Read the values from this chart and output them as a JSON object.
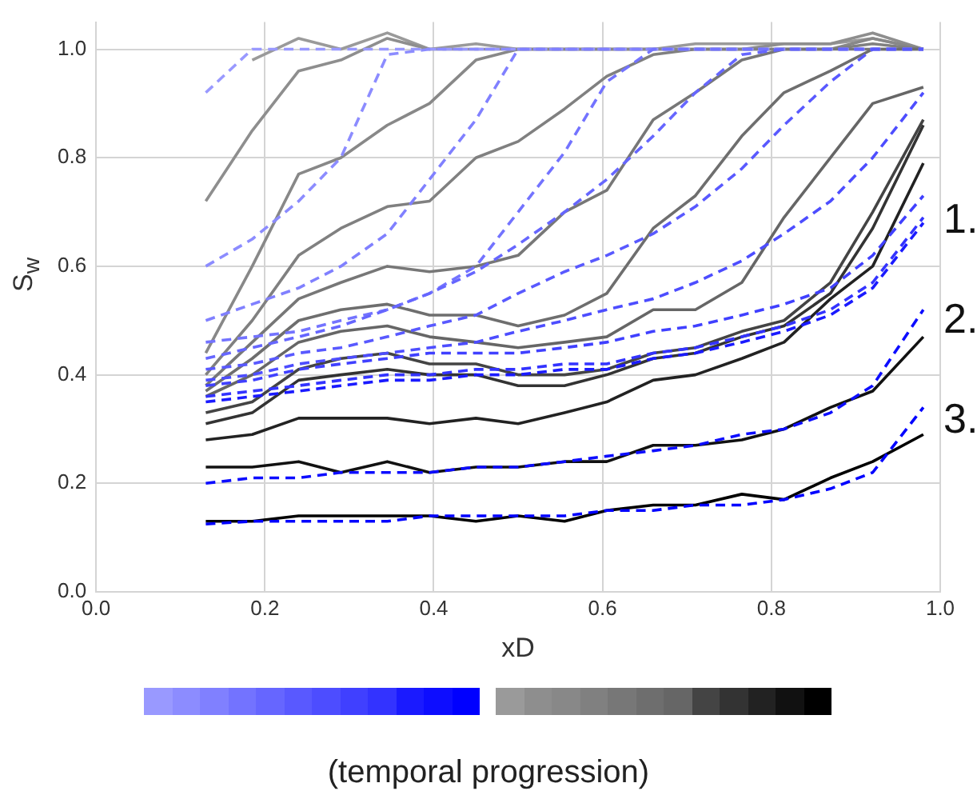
{
  "chart_data": {
    "type": "line",
    "xlabel": "xD",
    "ylabel": "S$_{w}$",
    "legend_title": "(temporal progression)",
    "annotations": [
      "1.",
      "2.",
      "3."
    ],
    "x": [
      0.13,
      0.185,
      0.24,
      0.29,
      0.345,
      0.395,
      0.45,
      0.5,
      0.555,
      0.605,
      0.66,
      0.71,
      0.765,
      0.815,
      0.87,
      0.92,
      0.98
    ],
    "xlim": [
      0,
      1
    ],
    "xticks": [
      {
        "value": 0,
        "label": "0.0"
      },
      {
        "value": 0.2,
        "label": "0.2"
      },
      {
        "value": 0.4,
        "label": "0.4"
      },
      {
        "value": 0.6,
        "label": "0.6"
      },
      {
        "value": 0.8,
        "label": "0.8"
      },
      {
        "value": 1,
        "label": "1.0"
      }
    ],
    "ylim": [
      0,
      1.05
    ],
    "yticks": [
      {
        "value": 0,
        "label": "0.0"
      },
      {
        "value": 0.2,
        "label": "0.2"
      },
      {
        "value": 0.4,
        "label": "0.4"
      },
      {
        "value": 0.6,
        "label": "0.6"
      },
      {
        "value": 0.8,
        "label": "0.8"
      },
      {
        "value": 1,
        "label": "1.0"
      }
    ],
    "grid": true,
    "legend": false,
    "marker": "none",
    "series": [
      {
        "color": "#9a9a9a",
        "line_style": "solid",
        "values": [
          null,
          0.98,
          1.02,
          1.0,
          1.03,
          1.0,
          1.01,
          1.0,
          1.0,
          1.0,
          1.0,
          1.01,
          1.01,
          1.01,
          1.01,
          1.02,
          1.0
        ]
      },
      {
        "color": "#8e8e8e",
        "line_style": "solid",
        "values": [
          0.72,
          0.85,
          0.96,
          0.98,
          1.02,
          1.0,
          1.0,
          1.0,
          1.0,
          1.0,
          1.0,
          1.0,
          1.0,
          1.01,
          1.01,
          1.03,
          1.0
        ]
      },
      {
        "color": "#888888",
        "line_style": "solid",
        "values": [
          0.44,
          0.6,
          0.77,
          0.8,
          0.86,
          0.9,
          0.98,
          1.0,
          1.0,
          1.0,
          1.0,
          1.0,
          1.0,
          1.0,
          1.0,
          1.02,
          1.0
        ]
      },
      {
        "color": "#808080",
        "line_style": "solid",
        "values": [
          0.4,
          0.5,
          0.62,
          0.67,
          0.71,
          0.72,
          0.8,
          0.83,
          0.89,
          0.95,
          0.99,
          1.0,
          1.0,
          1.0,
          1.0,
          1.01,
          1.0
        ]
      },
      {
        "color": "#777777",
        "line_style": "solid",
        "values": [
          0.38,
          0.46,
          0.54,
          0.57,
          0.6,
          0.59,
          0.6,
          0.62,
          0.7,
          0.74,
          0.87,
          0.92,
          0.98,
          1.0,
          1.0,
          1.0,
          1.0
        ]
      },
      {
        "color": "#6e6e6e",
        "line_style": "solid",
        "values": [
          0.37,
          0.43,
          0.5,
          0.52,
          0.53,
          0.51,
          0.51,
          0.49,
          0.51,
          0.55,
          0.67,
          0.73,
          0.84,
          0.92,
          0.96,
          1.0,
          1.0
        ]
      },
      {
        "color": "#666666",
        "line_style": "solid",
        "values": [
          0.36,
          0.4,
          0.46,
          0.48,
          0.49,
          0.47,
          0.46,
          0.45,
          0.46,
          0.47,
          0.52,
          0.52,
          0.57,
          0.69,
          0.8,
          0.9,
          0.93
        ]
      },
      {
        "color": "#444444",
        "line_style": "solid",
        "values": [
          0.33,
          0.35,
          0.41,
          0.43,
          0.44,
          0.42,
          0.42,
          0.4,
          0.4,
          0.41,
          0.44,
          0.45,
          0.48,
          0.5,
          0.57,
          0.7,
          0.87
        ]
      },
      {
        "color": "#333333",
        "line_style": "solid",
        "values": [
          0.31,
          0.33,
          0.39,
          0.4,
          0.41,
          0.4,
          0.4,
          0.38,
          0.38,
          0.4,
          0.43,
          0.44,
          0.47,
          0.49,
          0.55,
          0.67,
          0.86
        ]
      },
      {
        "color": "#222222",
        "line_style": "solid",
        "values": [
          0.28,
          0.29,
          0.32,
          0.32,
          0.32,
          0.31,
          0.32,
          0.31,
          0.33,
          0.35,
          0.39,
          0.4,
          0.43,
          0.46,
          0.54,
          0.6,
          0.79
        ]
      },
      {
        "color": "#111111",
        "line_style": "solid",
        "values": [
          0.23,
          0.23,
          0.24,
          0.22,
          0.24,
          0.22,
          0.23,
          0.23,
          0.24,
          0.24,
          0.27,
          0.27,
          0.28,
          0.3,
          0.34,
          0.37,
          0.47
        ]
      },
      {
        "color": "#000000",
        "line_style": "solid",
        "values": [
          0.13,
          0.13,
          0.14,
          0.14,
          0.14,
          0.14,
          0.13,
          0.14,
          0.13,
          0.15,
          0.16,
          0.16,
          0.18,
          0.17,
          0.21,
          0.24,
          0.29
        ]
      },
      {
        "color": "#9999ff",
        "line_style": "dashed",
        "values": [
          0.92,
          1.0,
          1.0,
          1.0,
          1.0,
          1.0,
          1.0,
          1.0,
          1.0,
          1.0,
          1.0,
          1.0,
          1.0,
          1.0,
          1.0,
          1.0,
          1.0
        ]
      },
      {
        "color": "#8c8cff",
        "line_style": "dashed",
        "values": [
          0.6,
          0.65,
          0.72,
          0.8,
          0.99,
          1.0,
          1.0,
          1.0,
          1.0,
          1.0,
          1.0,
          1.0,
          1.0,
          1.0,
          1.0,
          1.0,
          1.0
        ]
      },
      {
        "color": "#8080ff",
        "line_style": "dashed",
        "values": [
          0.5,
          0.53,
          0.56,
          0.6,
          0.66,
          0.76,
          0.87,
          1.0,
          1.0,
          1.0,
          1.0,
          1.0,
          1.0,
          1.0,
          1.0,
          1.0,
          1.0
        ]
      },
      {
        "color": "#7373ff",
        "line_style": "dashed",
        "values": [
          0.46,
          0.47,
          0.48,
          0.5,
          0.52,
          0.55,
          0.6,
          0.7,
          0.81,
          0.94,
          1.0,
          1.0,
          1.0,
          1.0,
          1.0,
          1.0,
          1.0
        ]
      },
      {
        "color": "#6666ff",
        "line_style": "dashed",
        "values": [
          0.43,
          0.45,
          0.47,
          0.49,
          0.52,
          0.55,
          0.59,
          0.64,
          0.7,
          0.76,
          0.84,
          0.92,
          0.99,
          1.0,
          1.0,
          1.0,
          1.0
        ]
      },
      {
        "color": "#5959ff",
        "line_style": "dashed",
        "values": [
          0.41,
          0.42,
          0.44,
          0.45,
          0.47,
          0.49,
          0.51,
          0.55,
          0.59,
          0.62,
          0.66,
          0.71,
          0.78,
          0.86,
          0.94,
          1.0,
          1.0
        ]
      },
      {
        "color": "#4d4dff",
        "line_style": "dashed",
        "values": [
          0.39,
          0.4,
          0.42,
          0.43,
          0.44,
          0.45,
          0.46,
          0.48,
          0.5,
          0.52,
          0.54,
          0.57,
          0.61,
          0.66,
          0.72,
          0.8,
          0.92
        ]
      },
      {
        "color": "#4040ff",
        "line_style": "dashed",
        "values": [
          0.38,
          0.39,
          0.41,
          0.42,
          0.43,
          0.44,
          0.44,
          0.44,
          0.45,
          0.46,
          0.48,
          0.49,
          0.51,
          0.53,
          0.56,
          0.62,
          0.73
        ]
      },
      {
        "color": "#3333ff",
        "line_style": "dashed",
        "values": [
          0.36,
          0.37,
          0.38,
          0.39,
          0.4,
          0.4,
          0.41,
          0.41,
          0.42,
          0.42,
          0.44,
          0.45,
          0.47,
          0.49,
          0.52,
          0.57,
          0.69
        ]
      },
      {
        "color": "#1a1aff",
        "line_style": "dashed",
        "values": [
          0.35,
          0.36,
          0.37,
          0.38,
          0.39,
          0.39,
          0.4,
          0.4,
          0.41,
          0.41,
          0.43,
          0.44,
          0.46,
          0.48,
          0.51,
          0.56,
          0.68
        ]
      },
      {
        "color": "#0d0dff",
        "line_style": "dashed",
        "values": [
          0.2,
          0.21,
          0.21,
          0.22,
          0.22,
          0.22,
          0.23,
          0.23,
          0.24,
          0.25,
          0.26,
          0.27,
          0.29,
          0.3,
          0.33,
          0.38,
          0.52
        ]
      },
      {
        "color": "#0000ff",
        "line_style": "dashed",
        "values": [
          0.125,
          0.13,
          0.13,
          0.13,
          0.13,
          0.14,
          0.14,
          0.14,
          0.14,
          0.15,
          0.15,
          0.16,
          0.16,
          0.17,
          0.19,
          0.22,
          0.34
        ]
      }
    ]
  }
}
